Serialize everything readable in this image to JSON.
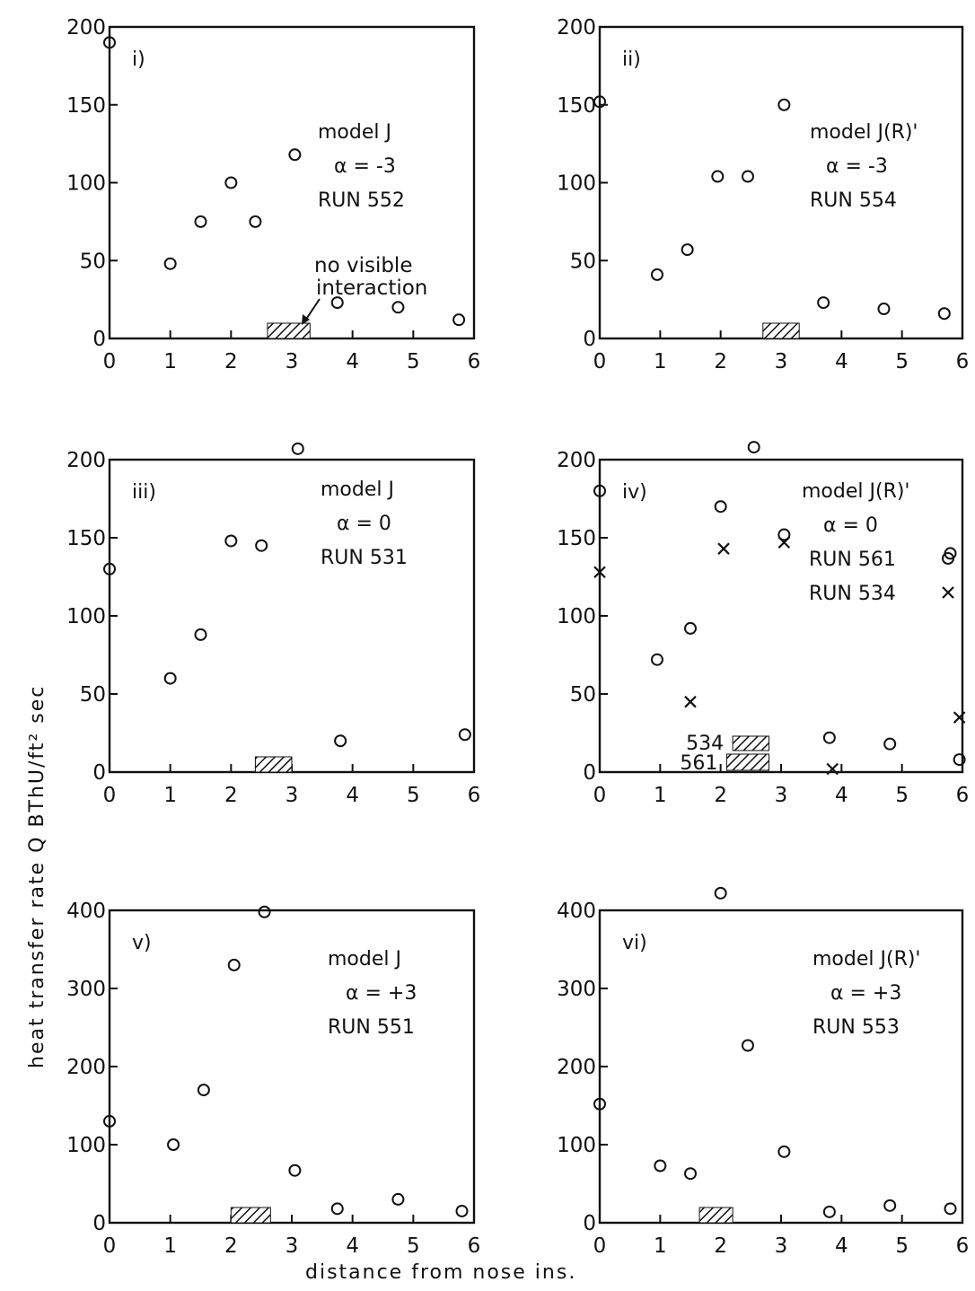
{
  "figure": {
    "ylabel": "heat transfer rate Q BThU/ft² sec",
    "xlabel": "distance from nose ins."
  },
  "chart_data": [
    {
      "type": "scatter",
      "panel_label": "i)",
      "annotations": [
        "model J",
        "α = -3",
        "RUN 552"
      ],
      "note_lines": [
        "no visible",
        "interaction"
      ],
      "xlim": [
        0,
        6
      ],
      "ylim": [
        0,
        200
      ],
      "xticks": [
        0,
        1,
        2,
        3,
        4,
        5,
        6
      ],
      "yticks": [
        0,
        50,
        100,
        150,
        200
      ],
      "interaction_zone": [
        {
          "x_from": 2.6,
          "x_to": 3.3
        }
      ],
      "series": [
        {
          "marker": "circle",
          "x": [
            0,
            1,
            1.5,
            2,
            2.4,
            3.05,
            3.75,
            4.75,
            5.75
          ],
          "y": [
            190,
            48,
            75,
            100,
            75,
            118,
            23,
            20,
            12
          ]
        }
      ]
    },
    {
      "type": "scatter",
      "panel_label": "ii)",
      "annotations": [
        "model J(R)'",
        "α = -3",
        "RUN 554"
      ],
      "xlim": [
        0,
        6
      ],
      "ylim": [
        0,
        200
      ],
      "xticks": [
        0,
        1,
        2,
        3,
        4,
        5,
        6
      ],
      "yticks": [
        0,
        50,
        100,
        150,
        200
      ],
      "interaction_zone": [
        {
          "x_from": 2.7,
          "x_to": 3.3
        }
      ],
      "series": [
        {
          "marker": "circle",
          "x": [
            0,
            0.95,
            1.45,
            1.95,
            2.45,
            3.05,
            3.7,
            4.7,
            5.7
          ],
          "y": [
            152,
            41,
            57,
            104,
            104,
            150,
            23,
            19,
            16
          ]
        }
      ]
    },
    {
      "type": "scatter",
      "panel_label": "iii)",
      "annotations": [
        "model J",
        "α = 0",
        "RUN 531"
      ],
      "xlim": [
        0,
        6
      ],
      "ylim": [
        0,
        200
      ],
      "xticks": [
        0,
        1,
        2,
        3,
        4,
        5,
        6
      ],
      "yticks": [
        0,
        50,
        100,
        150,
        200
      ],
      "interaction_zone": [
        {
          "x_from": 2.4,
          "x_to": 3.0
        }
      ],
      "series": [
        {
          "marker": "circle",
          "x": [
            0,
            1,
            1.5,
            2,
            2.5,
            3.1,
            3.8,
            5.85
          ],
          "y": [
            130,
            60,
            88,
            148,
            145,
            207,
            20,
            24
          ]
        }
      ]
    },
    {
      "type": "scatter",
      "panel_label": "iv)",
      "annotations": [
        "model J(R)'",
        "α = 0"
      ],
      "xlim": [
        0,
        6
      ],
      "ylim": [
        0,
        200
      ],
      "xticks": [
        0,
        1,
        2,
        3,
        4,
        5,
        6
      ],
      "yticks": [
        0,
        50,
        100,
        150,
        200
      ],
      "interaction_zone": [
        {
          "label": "534",
          "x_from": 2.2,
          "x_to": 2.8
        },
        {
          "label": "561",
          "x_from": 2.1,
          "x_to": 2.8
        }
      ],
      "series": [
        {
          "name": "RUN 561",
          "marker": "circle",
          "x": [
            0,
            0.95,
            1.5,
            2,
            2.55,
            3.05,
            3.8,
            4.8,
            5.8,
            5.95
          ],
          "y": [
            180,
            72,
            92,
            170,
            208,
            152,
            22,
            18,
            140,
            8
          ]
        },
        {
          "name": "RUN 534",
          "marker": "cross",
          "x": [
            0,
            1.5,
            2.05,
            3.05,
            3.85,
            5.95
          ],
          "y": [
            128,
            45,
            143,
            147,
            2,
            35
          ]
        }
      ]
    },
    {
      "type": "scatter",
      "panel_label": "v)",
      "annotations": [
        "model J",
        "α = +3",
        "RUN 551"
      ],
      "xlim": [
        0,
        6
      ],
      "ylim": [
        0,
        400
      ],
      "xticks": [
        0,
        1,
        2,
        3,
        4,
        5,
        6
      ],
      "yticks": [
        0,
        100,
        200,
        300,
        400
      ],
      "interaction_zone": [
        {
          "x_from": 2.0,
          "x_to": 2.65
        }
      ],
      "series": [
        {
          "marker": "circle",
          "x": [
            0,
            1.05,
            1.55,
            2.05,
            2.55,
            3.05,
            3.75,
            4.75,
            5.8
          ],
          "y": [
            130,
            100,
            170,
            330,
            398,
            67,
            18,
            30,
            15
          ]
        }
      ]
    },
    {
      "type": "scatter",
      "panel_label": "vi)",
      "annotations": [
        "model J(R)'",
        "α = +3",
        "RUN 553"
      ],
      "xlim": [
        0,
        6
      ],
      "ylim": [
        0,
        400
      ],
      "xticks": [
        0,
        1,
        2,
        3,
        4,
        5,
        6
      ],
      "yticks": [
        0,
        100,
        200,
        300,
        400
      ],
      "interaction_zone": [
        {
          "x_from": 1.65,
          "x_to": 2.2
        }
      ],
      "series": [
        {
          "marker": "circle",
          "x": [
            0,
            1.0,
            1.5,
            2.0,
            2.45,
            3.05,
            3.8,
            4.8,
            5.8
          ],
          "y": [
            152,
            73,
            63,
            422,
            227,
            91,
            14,
            22,
            18
          ]
        }
      ]
    }
  ]
}
